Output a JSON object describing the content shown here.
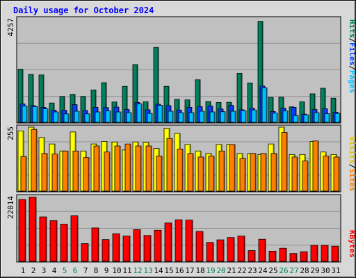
{
  "chart_data": [
    {
      "type": "bar",
      "title": "Daily usage for October 2024",
      "panel": "top",
      "y_max_label": "4257",
      "ylim": [
        0,
        4257
      ],
      "legend_right": [
        "Pages",
        "/",
        "Files",
        "/",
        "Hits"
      ],
      "categories": [
        "1",
        "2",
        "3",
        "4",
        "5",
        "6",
        "7",
        "8",
        "9",
        "10",
        "11",
        "12",
        "13",
        "14",
        "15",
        "16",
        "17",
        "18",
        "19",
        "20",
        "21",
        "22",
        "23",
        "24",
        "25",
        "26",
        "27",
        "28",
        "29",
        "30",
        "31"
      ],
      "weekend_days": [
        "5",
        "6",
        "12",
        "13",
        "19",
        "20",
        "26",
        "27"
      ],
      "series": [
        {
          "name": "Hits",
          "values": [
            2200,
            1980,
            1960,
            800,
            1070,
            1160,
            1070,
            1340,
            1640,
            840,
            1490,
            2390,
            850,
            3100,
            1490,
            950,
            930,
            1760,
            860,
            820,
            830,
            2030,
            1630,
            4180,
            1030,
            1040,
            640,
            850,
            1180,
            1410,
            1000
          ]
        },
        {
          "name": "Files",
          "values": [
            760,
            690,
            620,
            500,
            500,
            730,
            490,
            620,
            610,
            630,
            530,
            820,
            520,
            750,
            690,
            510,
            620,
            650,
            680,
            550,
            700,
            520,
            590,
            1500,
            450,
            590,
            620,
            340,
            530,
            560,
            420
          ]
        },
        {
          "name": "Pages",
          "values": [
            680,
            650,
            560,
            430,
            350,
            460,
            350,
            430,
            470,
            430,
            400,
            760,
            370,
            700,
            460,
            400,
            400,
            460,
            430,
            440,
            460,
            480,
            510,
            1430,
            380,
            470,
            280,
            310,
            400,
            360,
            370
          ]
        }
      ]
    },
    {
      "type": "bar",
      "panel": "middle",
      "y_max_label": "255",
      "ylim": [
        0,
        255
      ],
      "legend_right": [
        "Sites",
        "/",
        "Visits"
      ],
      "categories": [
        "1",
        "2",
        "3",
        "4",
        "5",
        "6",
        "7",
        "8",
        "9",
        "10",
        "11",
        "12",
        "13",
        "14",
        "15",
        "16",
        "17",
        "18",
        "19",
        "20",
        "21",
        "22",
        "23",
        "24",
        "25",
        "26",
        "27",
        "28",
        "29",
        "30",
        "31"
      ],
      "series": [
        {
          "name": "Visits",
          "values": [
            240,
            258,
            214,
            188,
            160,
            236,
            160,
            188,
            198,
            196,
            164,
            196,
            194,
            170,
            250,
            230,
            186,
            160,
            150,
            186,
            186,
            150,
            150,
            146,
            188,
            255,
            146,
            146,
            198,
            156,
            146
          ]
        },
        {
          "name": "Sites",
          "values": [
            138,
            246,
            150,
            148,
            160,
            160,
            134,
            180,
            156,
            180,
            188,
            180,
            180,
            140,
            210,
            168,
            150,
            136,
            140,
            160,
            186,
            130,
            150,
            150,
            150,
            234,
            136,
            120,
            200,
            140,
            136
          ]
        }
      ]
    },
    {
      "type": "bar",
      "panel": "bottom",
      "y_max_label": "22014",
      "ylim": [
        0,
        22014
      ],
      "legend_right": [
        "KBytes"
      ],
      "categories": [
        "1",
        "2",
        "3",
        "4",
        "5",
        "6",
        "7",
        "8",
        "9",
        "10",
        "11",
        "12",
        "13",
        "14",
        "15",
        "16",
        "17",
        "18",
        "19",
        "20",
        "21",
        "22",
        "23",
        "24",
        "25",
        "26",
        "27",
        "28",
        "29",
        "30",
        "31"
      ],
      "series": [
        {
          "name": "KBytes",
          "values": [
            21300,
            22100,
            15300,
            14000,
            12800,
            15700,
            6100,
            11500,
            7500,
            9500,
            8700,
            10900,
            8900,
            10700,
            13200,
            14300,
            14200,
            10300,
            6500,
            7400,
            8200,
            8700,
            3700,
            7600,
            3500,
            4500,
            2700,
            3300,
            5500,
            5500,
            5200
          ]
        }
      ]
    }
  ],
  "colors": {
    "hits": "#00805c",
    "files": "#0040ff",
    "pages": "#00c0ff",
    "visits": "#ffff00",
    "sites": "#ff8000",
    "kbytes": "#ff0000",
    "title": "#0000ff",
    "weekend_label": "#00805c",
    "weekday_label": "#000000",
    "plot_bg": "#c0c0c0",
    "page_bg": "#d8d8d8"
  }
}
